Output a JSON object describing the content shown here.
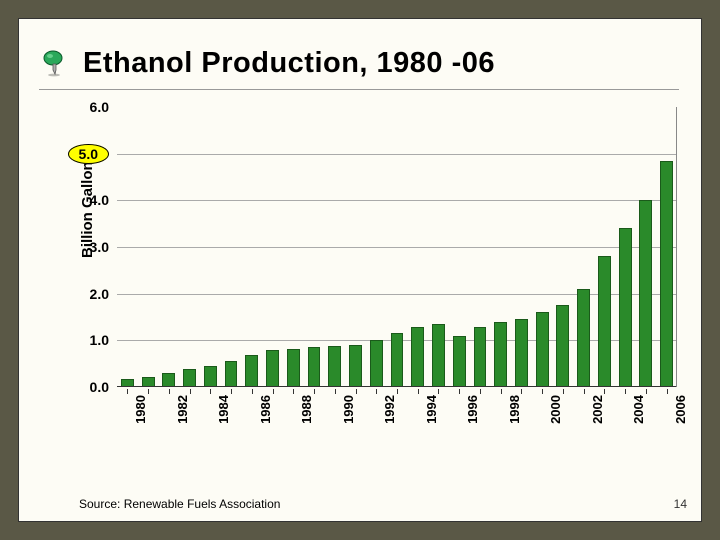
{
  "slide": {
    "title": "Ethanol Production, 1980 -06",
    "source": "Source: Renewable Fuels Association",
    "page_number": "14",
    "background_color": "#fdfcf5",
    "outer_background": "#5a5846"
  },
  "chart": {
    "type": "bar",
    "y_axis_label": "Billion Gallons",
    "ylim": [
      0,
      6
    ],
    "ytick_step": 1,
    "y_ticks": [
      "0.0",
      "1.0",
      "2.0",
      "3.0",
      "4.0",
      "5.0",
      "6.0"
    ],
    "highlighted_y_tick": "5.0",
    "x_tick_labels": [
      "1980",
      "1982",
      "1984",
      "1986",
      "1988",
      "1990",
      "1992",
      "1994",
      "1996",
      "1998",
      "2000",
      "2002",
      "2004",
      "2006"
    ],
    "x_tick_every": 2,
    "categories": [
      "1980",
      "1981",
      "1982",
      "1983",
      "1984",
      "1985",
      "1986",
      "1987",
      "1988",
      "1989",
      "1990",
      "1991",
      "1992",
      "1993",
      "1994",
      "1995",
      "1996",
      "1997",
      "1998",
      "1999",
      "2000",
      "2001",
      "2002",
      "2003",
      "2004",
      "2005",
      "2006"
    ],
    "values": [
      0.18,
      0.22,
      0.3,
      0.38,
      0.45,
      0.55,
      0.68,
      0.8,
      0.82,
      0.85,
      0.88,
      0.9,
      1.0,
      1.15,
      1.28,
      1.35,
      1.1,
      1.28,
      1.4,
      1.45,
      1.6,
      1.75,
      2.1,
      2.8,
      3.4,
      4.0,
      4.85
    ],
    "bar_color": "#2a8a2a",
    "bar_border_color": "#1a5a1a",
    "grid_color": "#aaaaaa",
    "bar_width_ratio": 0.62,
    "title_fontsize": 29,
    "label_fontsize": 15,
    "tick_fontsize": 14
  }
}
